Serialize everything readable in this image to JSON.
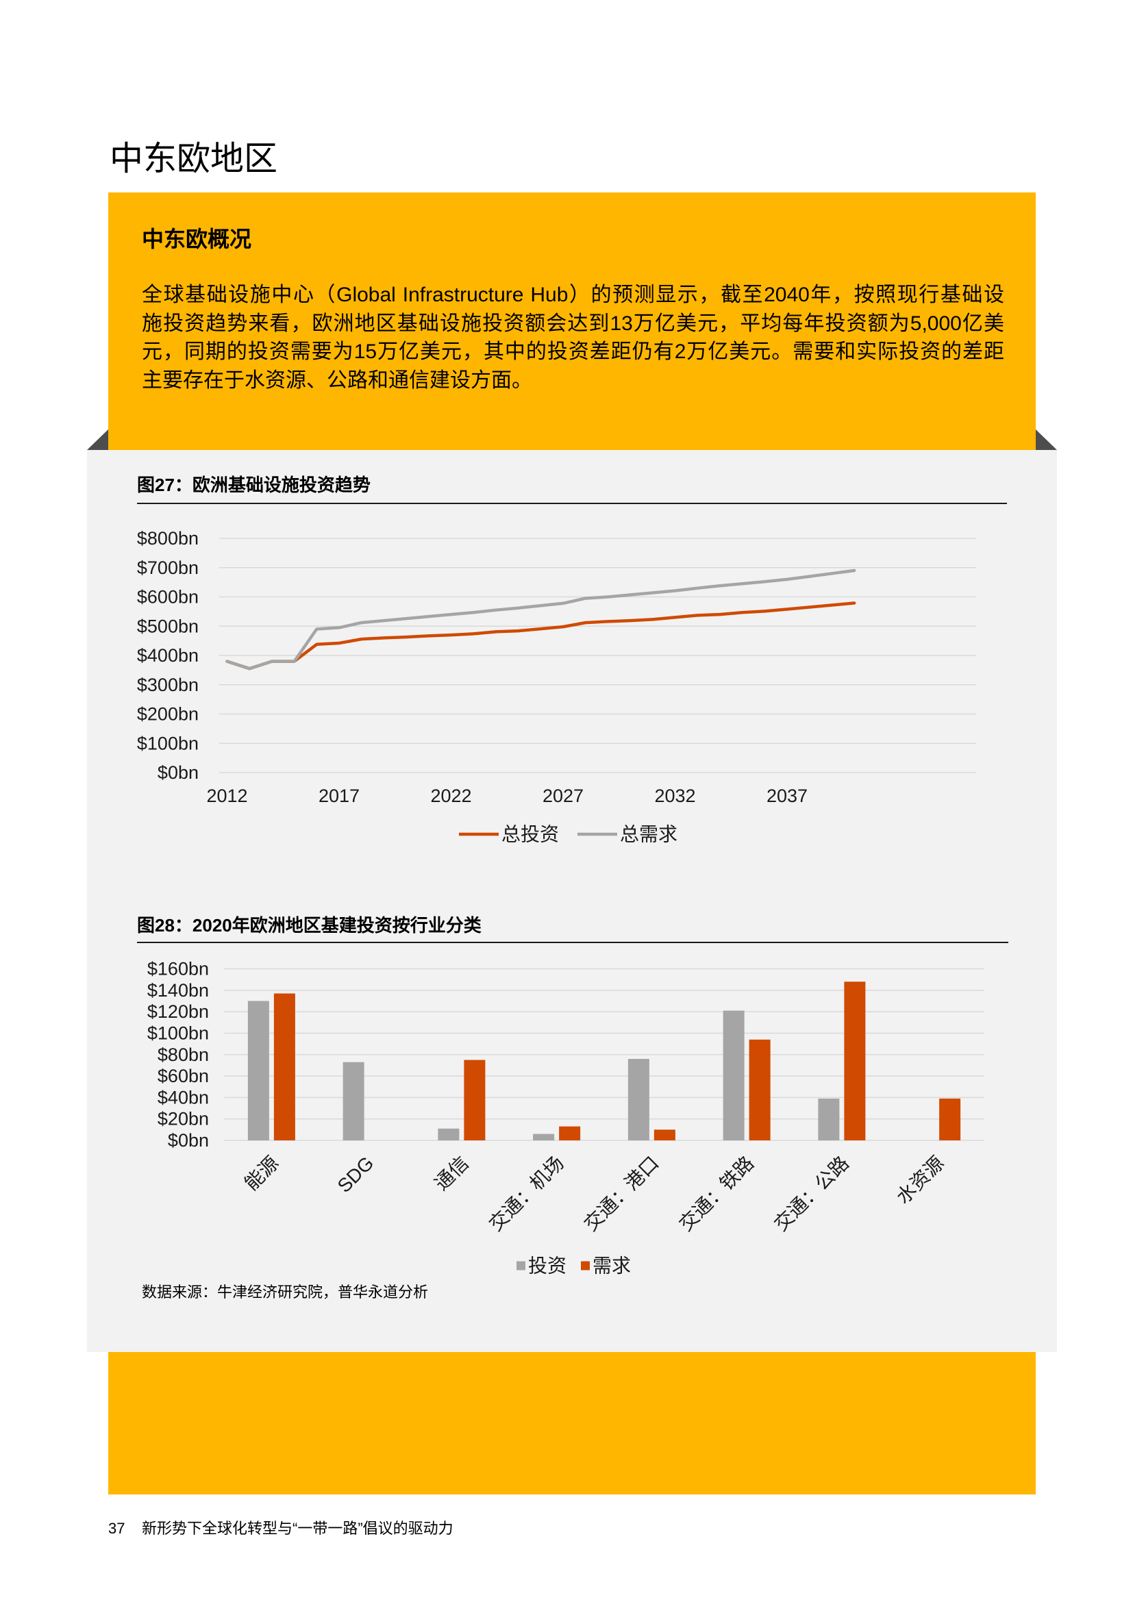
{
  "page": {
    "section_title": "中东欧地区"
  },
  "overview": {
    "heading": "中东欧概况",
    "paragraph_lines": [
      "全球基础设施中心（Global Infrastructure Hub）的预测显示，截至2040年，按照现行基础设",
      "施投资趋势来看，欧洲地区基础设施投资额会达到13万亿美元，平均每年投资额为5,000亿美",
      "元，同期的投资需要为15万亿美元，其中的投资差距仍有2万亿美元。需要和实际投资的差距",
      "主要存在于水资源、公路和通信建设方面。"
    ]
  },
  "source_note": "数据来源：牛津经济研究院，普华永道分析",
  "footer": {
    "page_number": "37",
    "publication_title": "新形势下全球化转型与“一带一路”倡议的驱动力"
  },
  "colors": {
    "accent_yellow": "#FFB600",
    "panel_grey": "#F2F2F2",
    "fold_shadow": "#4D4D4D",
    "gridline": "#D9D9D9"
  },
  "chart_data": [
    {
      "type": "line",
      "title": "图27：欧洲基础设施投资趋势",
      "x": [
        2012,
        2013,
        2014,
        2015,
        2016,
        2017,
        2018,
        2019,
        2020,
        2021,
        2022,
        2023,
        2024,
        2025,
        2026,
        2027,
        2028,
        2029,
        2030,
        2031,
        2032,
        2033,
        2034,
        2035,
        2036,
        2037,
        2038,
        2039,
        2040
      ],
      "x_tick_labels": [
        "2012",
        "2017",
        "2022",
        "2027",
        "2032",
        "2037"
      ],
      "y_ticks": [
        0,
        100,
        200,
        300,
        400,
        500,
        600,
        700,
        800
      ],
      "y_tick_labels": [
        "$0bn",
        "$100bn",
        "$200bn",
        "$300bn",
        "$400bn",
        "$500bn",
        "$600bn",
        "$700bn",
        "$800bn"
      ],
      "ylim": [
        0,
        800
      ],
      "grid": true,
      "legend": "bottom-center",
      "series": [
        {
          "name": "总投资",
          "color": "#D04A02",
          "values": [
            380,
            355,
            380,
            380,
            438,
            442,
            456,
            460,
            463,
            467,
            470,
            474,
            481,
            484,
            491,
            498,
            512,
            516,
            519,
            523,
            530,
            537,
            540,
            547,
            551,
            558,
            565,
            572,
            579
          ]
        },
        {
          "name": "总需求",
          "color": "#A5A5A5",
          "values": [
            380,
            355,
            380,
            380,
            490,
            495,
            512,
            519,
            526,
            533,
            540,
            547,
            555,
            562,
            570,
            578,
            595,
            600,
            607,
            614,
            621,
            630,
            638,
            645,
            652,
            660,
            670,
            680,
            690
          ]
        }
      ]
    },
    {
      "type": "bar",
      "title": "图28：2020年欧洲地区基建投资按行业分类",
      "categories": [
        "能源",
        "SDG",
        "通信",
        "交通：机场",
        "交通：港口",
        "交通：铁路",
        "交通：公路",
        "水资源"
      ],
      "y_ticks": [
        0,
        20,
        40,
        60,
        80,
        100,
        120,
        140,
        160
      ],
      "y_tick_labels": [
        "$0bn",
        "$20bn",
        "$40bn",
        "$60bn",
        "$80bn",
        "$100bn",
        "$120bn",
        "$140bn",
        "$160bn"
      ],
      "ylim": [
        0,
        160
      ],
      "grid": true,
      "legend": "bottom-center",
      "series": [
        {
          "name": "投资",
          "color": "#A5A5A5",
          "values": [
            130,
            73,
            11,
            6,
            76,
            121,
            39,
            0
          ]
        },
        {
          "name": "需求",
          "color": "#D04A02",
          "values": [
            137,
            0,
            75,
            13,
            10,
            94,
            148,
            39
          ]
        }
      ]
    }
  ]
}
